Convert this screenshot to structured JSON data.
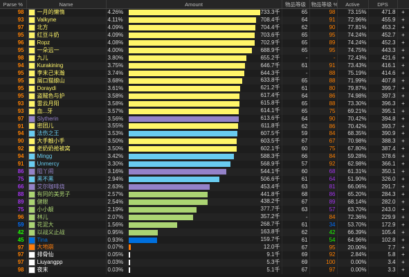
{
  "headers": {
    "parse": "Parse %",
    "name": "Name",
    "amount": "Amount",
    "col_a": "物品等级",
    "col_b": "物品等级 %",
    "active": "Active",
    "dps": "DPS"
  },
  "class_colors": {
    "rogue": "#fff569",
    "paladin": "#f58cba",
    "hunter": "#abd473",
    "mage": "#69ccf0",
    "warlock": "#9482c9",
    "priest": "#ffffff",
    "shaman": "#0070de",
    "druid": "#ff7d0a"
  },
  "parse_colors": {
    "gold": "#e5cc80",
    "orange": "#ff8000",
    "purple": "#a335ee",
    "blue": "#0070ff",
    "green": "#1eff00",
    "gray": "#666666"
  },
  "rows": [
    {
      "parse": "98",
      "pc": "orange",
      "name": "一月的懒惰",
      "cls": "rogue",
      "pct": "4.26%",
      "amount": "733.3千",
      "fill": 1.0,
      "a": "65",
      "b": "98",
      "active": "73.15%",
      "dps": "471.8",
      "plus": "+"
    },
    {
      "parse": "93",
      "pc": "orange",
      "name": "Valkyne",
      "cls": "rogue",
      "pct": "4.11%",
      "amount": "708.4千",
      "fill": 0.966,
      "a": "64",
      "b": "91",
      "active": "72.96%",
      "dps": "455.9",
      "plus": "+"
    },
    {
      "parse": "97",
      "pc": "orange",
      "name": "北方",
      "cls": "rogue",
      "pct": "4.09%",
      "amount": "704.4千",
      "fill": 0.961,
      "a": "62",
      "b": "90",
      "active": "77.81%",
      "dps": "453.2",
      "plus": "+"
    },
    {
      "parse": "95",
      "pc": "orange",
      "name": "红豆斗奶",
      "cls": "rogue",
      "pct": "4.09%",
      "amount": "703.6千",
      "fill": 0.96,
      "a": "65",
      "b": "95",
      "active": "74.24%",
      "dps": "452.7",
      "plus": "+"
    },
    {
      "parse": "96",
      "pc": "orange",
      "name": "Ropz",
      "cls": "rogue",
      "pct": "4.08%",
      "amount": "702.9千",
      "fill": 0.959,
      "a": "65",
      "b": "89",
      "active": "74.24%",
      "dps": "452.3",
      "plus": "+"
    },
    {
      "parse": "95",
      "pc": "orange",
      "name": "一朵远一",
      "cls": "rogue",
      "pct": "4.00%",
      "amount": "688.9千",
      "fill": 0.939,
      "a": "65",
      "b": "95",
      "active": "74.75%",
      "dps": "443.3",
      "plus": "+"
    },
    {
      "parse": "98",
      "pc": "orange",
      "name": "九儿",
      "cls": "rogue",
      "pct": "3.80%",
      "amount": "655.2千",
      "fill": 0.893,
      "a": "-",
      "b": "-",
      "active": "72.43%",
      "dps": "421.6",
      "plus": "+"
    },
    {
      "parse": "94",
      "pc": "orange",
      "name": "Kurakining",
      "cls": "rogue",
      "pct": "3.75%",
      "amount": "646.7千",
      "fill": 0.882,
      "a": "61",
      "b": "91",
      "active": "73.43%",
      "dps": "416.1",
      "plus": "+"
    },
    {
      "parse": "95",
      "pc": "orange",
      "name": "李末己末瀚",
      "cls": "rogue",
      "pct": "3.74%",
      "amount": "644.3千",
      "fill": 0.879,
      "a": "-",
      "b": "88",
      "active": "75.19%",
      "dps": "414.6",
      "plus": "+"
    },
    {
      "parse": "95",
      "pc": "orange",
      "name": "屑口猫娘山",
      "cls": "rogue",
      "pct": "3.68%",
      "amount": "633.8千",
      "fill": 0.864,
      "a": "65",
      "b": "88",
      "active": "71.99%",
      "dps": "407.8",
      "plus": "+"
    },
    {
      "parse": "95",
      "pc": "orange",
      "name": "Doraydi",
      "cls": "rogue",
      "pct": "3.61%",
      "amount": "621.2千",
      "fill": 0.847,
      "a": "61",
      "b": "80",
      "active": "79.87%",
      "dps": "399.7",
      "plus": "+"
    },
    {
      "parse": "95",
      "pc": "orange",
      "name": "盗贼色与护",
      "cls": "rogue",
      "pct": "3.58%",
      "amount": "617.4千",
      "fill": 0.842,
      "a": "64",
      "b": "86",
      "active": "74.98%",
      "dps": "397.3",
      "plus": "+"
    },
    {
      "parse": "93",
      "pc": "orange",
      "name": "雷云月阳",
      "cls": "rogue",
      "pct": "3.58%",
      "amount": "615.8千",
      "fill": 0.84,
      "a": "65",
      "b": "88",
      "active": "73.30%",
      "dps": "396.3",
      "plus": "+"
    },
    {
      "parse": "93",
      "pc": "orange",
      "name": "血...牙",
      "cls": "rogue",
      "pct": "3.57%",
      "amount": "614.1千",
      "fill": 0.837,
      "a": "65",
      "b": "75",
      "active": "69.21%",
      "dps": "395.1",
      "plus": "+"
    },
    {
      "parse": "97",
      "pc": "orange",
      "name": "Slytherin",
      "cls": "warlock",
      "pct": "3.56%",
      "amount": "613.6千",
      "fill": 0.837,
      "a": "64",
      "b": "90",
      "active": "70.42%",
      "dps": "394.8",
      "plus": "+"
    },
    {
      "parse": "91",
      "pc": "orange",
      "name": "密团儿",
      "cls": "rogue",
      "pct": "3.55%",
      "amount": "611.8千",
      "fill": 0.834,
      "a": "62",
      "b": "86",
      "active": "70.42%",
      "dps": "393.7",
      "plus": "+"
    },
    {
      "parse": "94",
      "pc": "orange",
      "name": "法伤之王",
      "cls": "mage",
      "pct": "3.53%",
      "amount": "607.5千",
      "fill": 0.828,
      "a": "59",
      "b": "84",
      "active": "68.35%",
      "dps": "390.9",
      "plus": "+"
    },
    {
      "parse": "90",
      "pc": "orange",
      "name": "大手触小手",
      "cls": "rogue",
      "pct": "3.50%",
      "amount": "603.5千",
      "fill": 0.823,
      "a": "67",
      "b": "67",
      "active": "70.98%",
      "dps": "388.3",
      "plus": "+"
    },
    {
      "parse": "92",
      "pc": "orange",
      "name": "老奶奶抢被窝",
      "cls": "rogue",
      "pct": "3.50%",
      "amount": "602.1千",
      "fill": 0.821,
      "a": "60",
      "b": "75",
      "active": "67.80%",
      "dps": "387.4",
      "plus": "+"
    },
    {
      "parse": "94",
      "pc": "orange",
      "name": "Mingg",
      "cls": "mage",
      "pct": "3.42%",
      "amount": "588.3千",
      "fill": 0.802,
      "a": "66",
      "b": "84",
      "active": "59.28%",
      "dps": "378.6",
      "plus": "+"
    },
    {
      "parse": "91",
      "pc": "orange",
      "name": "Unmercy",
      "cls": "mage",
      "pct": "3.30%",
      "amount": "568.9千",
      "fill": 0.776,
      "a": "57",
      "b": "92",
      "active": "62.98%",
      "dps": "366.1",
      "plus": "+"
    },
    {
      "parse": "86",
      "pc": "purple",
      "name": "阻丫闹",
      "cls": "warlock",
      "pct": "3.16%",
      "amount": "544.1千",
      "fill": 0.742,
      "a": "60",
      "b": "68",
      "active": "61.31%",
      "dps": "350.1",
      "plus": "+"
    },
    {
      "parse": "75",
      "pc": "purple",
      "name": "黑不黑",
      "cls": "mage",
      "pct": "2.94%",
      "amount": "506.6千",
      "fill": 0.691,
      "a": "61",
      "b": "64",
      "active": "51.90%",
      "dps": "326.0",
      "plus": "+"
    },
    {
      "parse": "66",
      "pc": "purple",
      "name": "艾尔咖啡烧",
      "cls": "warlock",
      "pct": "2.63%",
      "amount": "453.4千",
      "fill": 0.618,
      "a": "63",
      "b": "81",
      "active": "66.06%",
      "dps": "291.7",
      "plus": "+"
    },
    {
      "parse": "88",
      "pc": "purple",
      "name": "有同的美男子",
      "cls": "hunter",
      "pct": "2.57%",
      "amount": "441.8千",
      "fill": 0.602,
      "a": "68",
      "b": "86",
      "active": "65.20%",
      "dps": "284.3",
      "plus": "+"
    },
    {
      "parse": "89",
      "pc": "purple",
      "name": "健眼",
      "cls": "hunter",
      "pct": "2.54%",
      "amount": "438.2千",
      "fill": 0.598,
      "a": "67",
      "b": "89",
      "active": "68.14%",
      "dps": "282.0",
      "plus": "+"
    },
    {
      "parse": "75",
      "pc": "purple",
      "name": "小小靓",
      "cls": "hunter",
      "pct": "2.19%",
      "amount": "377.7千",
      "fill": 0.515,
      "a": "63",
      "b": "57",
      "active": "63.70%",
      "dps": "243.0",
      "plus": "+"
    },
    {
      "parse": "96",
      "pc": "orange",
      "name": "林儿",
      "cls": "hunter",
      "pct": "2.07%",
      "amount": "357.2千",
      "fill": 0.487,
      "a": "-",
      "b": "84",
      "active": "72.36%",
      "dps": "229.9",
      "plus": "+"
    },
    {
      "parse": "59",
      "pc": "blue",
      "name": "花泥大",
      "cls": "hunter",
      "pct": "1.56%",
      "amount": "268.7千",
      "fill": 0.366,
      "a": "61",
      "b": "34",
      "active": "53.70%",
      "dps": "172.9",
      "plus": "+"
    },
    {
      "parse": "42",
      "pc": "green",
      "name": "以战义止战",
      "cls": "hunter",
      "pct": "0.95%",
      "amount": "163.8千",
      "fill": 0.223,
      "a": "62",
      "b": "42",
      "active": "66.39%",
      "dps": "105.4",
      "plus": "+"
    },
    {
      "parse": "45",
      "pc": "green",
      "name": "Tina",
      "cls": "shaman",
      "pct": "0.93%",
      "amount": "159.7千",
      "fill": 0.218,
      "a": "61",
      "b": "54",
      "active": "64.96%",
      "dps": "102.8",
      "plus": "+"
    },
    {
      "parse": "97",
      "pc": "orange",
      "name": "大地崩",
      "cls": "druid",
      "pct": "0.07%",
      "amount": "12.0千",
      "fill": 0.016,
      "a": "67",
      "b": "95",
      "active": "20.00%",
      "dps": "7.7",
      "plus": "+"
    },
    {
      "parse": "97",
      "pc": "orange",
      "name": "排骨仙",
      "cls": "priest",
      "pct": "0.05%",
      "amount": "9.1千",
      "fill": 0.012,
      "a": "69",
      "b": "92",
      "active": "2.84%",
      "dps": "5.8",
      "plus": "+"
    },
    {
      "parse": "97",
      "pc": "orange",
      "name": "Liuyangpp",
      "cls": "priest",
      "pct": "0.03%",
      "amount": "5.3千",
      "fill": 0.007,
      "a": "69",
      "b": "100",
      "active": "0.00%",
      "dps": "3.4",
      "plus": "+"
    },
    {
      "parse": "98",
      "pc": "orange",
      "name": "夜末",
      "cls": "priest",
      "pct": "0.03%",
      "amount": "5.1千",
      "fill": 0.007,
      "a": "67",
      "b": "97",
      "active": "0.00%",
      "dps": "3.3",
      "plus": "+"
    }
  ]
}
